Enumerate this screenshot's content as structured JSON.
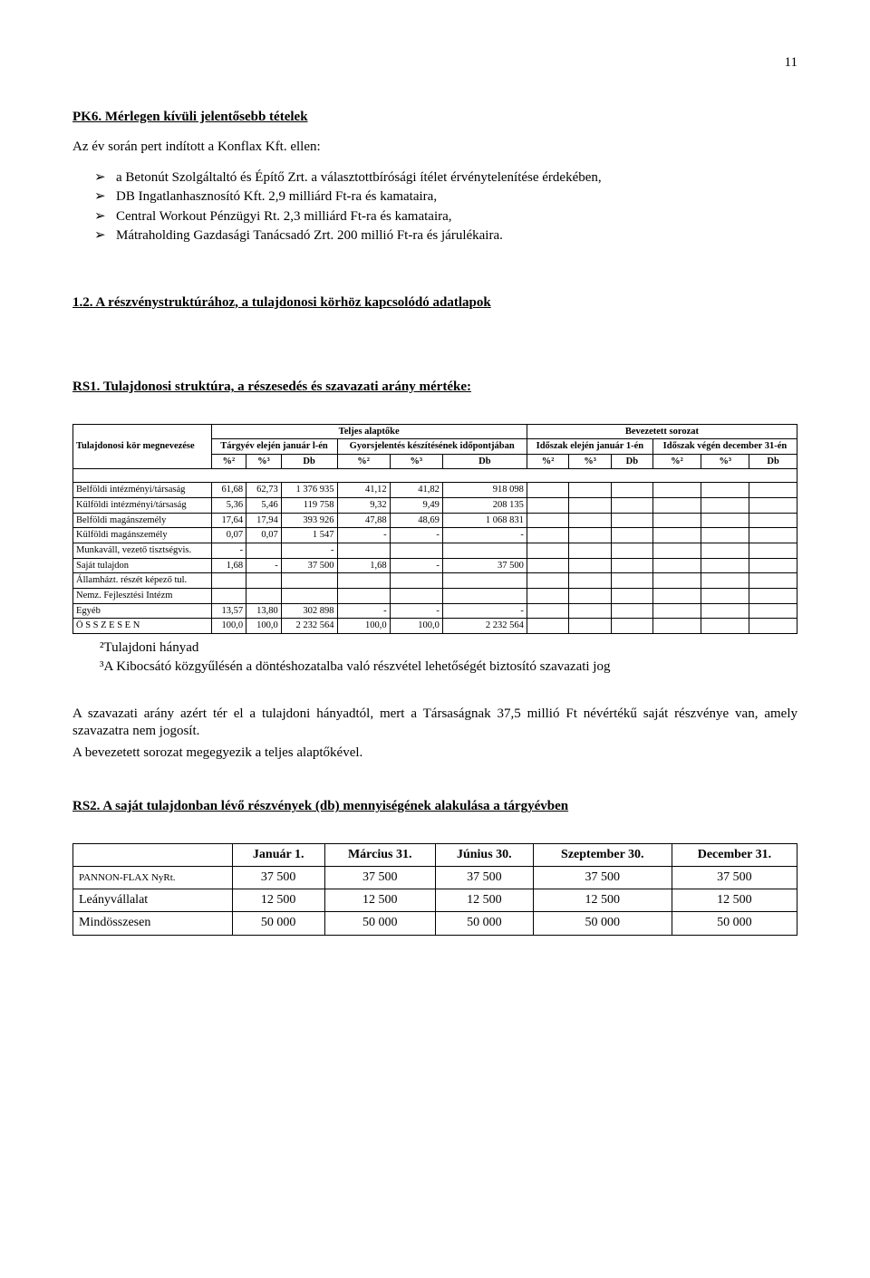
{
  "page_number": "11",
  "pk6": {
    "heading": "PK6. Mérlegen kívüli jelentősebb tételek",
    "intro": "Az év során pert indított a Konflax Kft. ellen:",
    "bullets": [
      "a Betonút Szolgáltaltó és Építő Zrt. a választottbírósági ítélet érvénytelenítése érdekében,",
      "DB Ingatlanhasznosító Kft. 2,9 milliárd Ft-ra és kamataira,",
      "Central Workout Pénzügyi Rt. 2,3 milliárd Ft-ra és kamataira,",
      "Mátraholding Gazdasági Tanácsadó Zrt. 200 millió Ft-ra és járulékaira."
    ]
  },
  "section12_heading": "1.2. A részvénystruktúrához, a tulajdonosi körhöz kapcsolódó adatlapok",
  "rs1": {
    "heading": "RS1. Tulajdonosi struktúra, a részesedés és szavazati arány mértéke:",
    "col_label": "Tulajdonosi kör megnevezése",
    "group1": "Teljes alaptőke",
    "group2": "Bevezetett sorozat",
    "sub1": "Tárgyév elején január l-én",
    "sub2": "Gyorsjelentés készítésének időpontjában",
    "sub3": "Időszak elején január 1-én",
    "sub4": "Időszak végén december 31-én",
    "pct2": "%²",
    "pct3": "%³",
    "db": "Db",
    "rows": [
      {
        "label": "Belföldi intézményi/társaság",
        "a": "61,68",
        "b": "62,73",
        "c": "1 376 935",
        "d": "41,12",
        "e": "41,82",
        "f": "918 098"
      },
      {
        "label": "Külföldi intézményi/társaság",
        "a": "5,36",
        "b": "5,46",
        "c": "119 758",
        "d": "9,32",
        "e": "9,49",
        "f": "208 135"
      },
      {
        "label": "Belföldi magánszemély",
        "a": "17,64",
        "b": "17,94",
        "c": "393 926",
        "d": "47,88",
        "e": "48,69",
        "f": "1 068 831"
      },
      {
        "label": "Külföldi magánszemély",
        "a": "0,07",
        "b": "0,07",
        "c": "1 547",
        "d": "-",
        "e": "-",
        "f": "-"
      },
      {
        "label": "Munkaváll, vezető tisztségvis.",
        "a": "-",
        "b": "",
        "c": "-",
        "d": "",
        "e": "",
        "f": ""
      },
      {
        "label": "Saját tulajdon",
        "a": "1,68",
        "b": "-",
        "c": "37 500",
        "d": "1,68",
        "e": "-",
        "f": "37 500"
      },
      {
        "label": "Államházt. részét képező tul.",
        "a": "",
        "b": "",
        "c": "",
        "d": "",
        "e": "",
        "f": ""
      },
      {
        "label": "Nemz. Fejlesztési Intézm",
        "a": "",
        "b": "",
        "c": "",
        "d": "",
        "e": "",
        "f": ""
      },
      {
        "label": "Egyéb",
        "a": "13,57",
        "b": "13,80",
        "c": "302 898",
        "d": "-",
        "e": "-",
        "f": "-"
      }
    ],
    "total_label": "Ö S S Z E S E N",
    "total": {
      "a": "100,0",
      "b": "100,0",
      "c": "2 232 564",
      "d": "100,0",
      "e": "100,0",
      "f": "2 232 564"
    },
    "footnote2": "²Tulajdoni hányad",
    "footnote3": "³A Kibocsátó közgyűlésén a döntéshozatalba való részvétel lehetőségét biztosító szavazati jog"
  },
  "body1": "A szavazati arány azért tér el a tulajdoni hányadtól, mert a Társaságnak 37,5 millió Ft névértékű saját részvénye van, amely szavazatra nem jogosít.",
  "body2": "A bevezetett sorozat megegyezik a teljes alaptőkével.",
  "rs2": {
    "heading": "RS2. A saját tulajdonban lévő részvények (db) mennyiségének alakulása a tárgyévben",
    "cols": [
      "Január 1.",
      "Március 31.",
      "Június 30.",
      "Szeptember 30.",
      "December 31."
    ],
    "rows": [
      {
        "label": "PANNON-FLAX NyRt.",
        "v": [
          "37 500",
          "37 500",
          "37 500",
          "37 500",
          "37 500"
        ],
        "small": true
      },
      {
        "label": "Leányvállalat",
        "v": [
          "12 500",
          "12 500",
          "12 500",
          "12 500",
          "12 500"
        ]
      },
      {
        "label": "Mindösszesen",
        "v": [
          "50 000",
          "50 000",
          "50 000",
          "50 000",
          "50 000"
        ]
      }
    ]
  }
}
